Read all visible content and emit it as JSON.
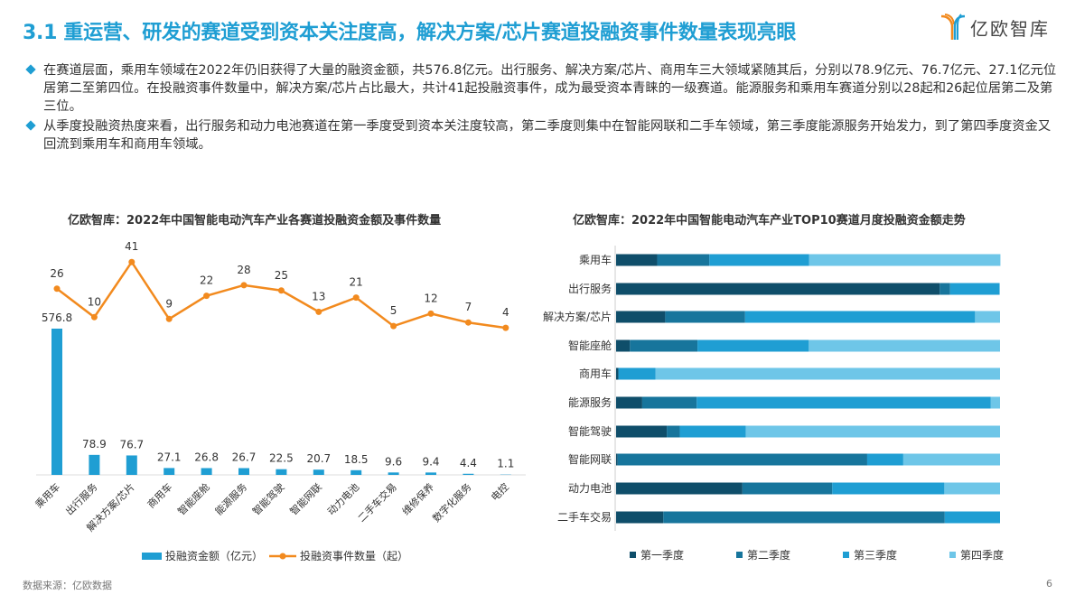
{
  "header": {
    "title": "3.1 重运营、研发的赛道受到资本关注度高，解决方案/芯片赛道投融资事件数量表现亮眼",
    "logo_text": "亿欧智库"
  },
  "bullets": [
    "在赛道层面，乘用车领域在2022年仍旧获得了大量的融资金额，共576.8亿元。出行服务、解决方案/芯片、商用车三大领域紧随其后，分别以78.9亿元、76.7亿元、27.1亿元位居第二至第四位。在投融资事件数量中，解决方案/芯片占比最大，共计41起投融资事件，成为最受资本青睐的一级赛道。能源服务和乘用车赛道分别以28起和26起位居第二及第三位。",
    "从季度投融资热度来看，出行服务和动力电池赛道在第一季度受到资本关注度较高，第二季度则集中在智能网联和二手车领域，第三季度能源服务开始发力，到了第四季度资金又回流到乘用车和商用车领域。"
  ],
  "chart_data": [
    {
      "type": "bar+line",
      "title": "亿欧智库：2022年中国智能电动汽车产业各赛道投融资金额及事件数量",
      "categories": [
        "乘用车",
        "出行服务",
        "解决方案/芯片",
        "商用车",
        "智能座舱",
        "能源服务",
        "智能驾驶",
        "智能网联",
        "动力电池",
        "二手车交易",
        "维修保养",
        "数字化服务",
        "电控"
      ],
      "series": [
        {
          "name": "投融资金额（亿元）",
          "type": "bar",
          "color": "#1f9ed3",
          "values": [
            576.8,
            78.9,
            76.7,
            27.1,
            26.8,
            26.7,
            22.5,
            20.7,
            18.5,
            9.6,
            9.4,
            4.4,
            1.1
          ]
        },
        {
          "name": "投融资事件数量（起）",
          "type": "line",
          "color": "#f28a1e",
          "values": [
            26,
            10,
            41,
            9,
            22,
            28,
            25,
            13,
            21,
            5,
            12,
            7,
            4
          ]
        }
      ],
      "legend": "bottom"
    },
    {
      "type": "stacked-bar-100-horizontal",
      "title": "亿欧智库：2022年中国智能电动汽车产业TOP10赛道月度投融资金额走势",
      "categories": [
        "乘用车",
        "出行服务",
        "解决方案/芯片",
        "智能座舱",
        "商用车",
        "能源服务",
        "智能驾驶",
        "智能网联",
        "动力电池",
        "二手车交易"
      ],
      "series": [
        {
          "name": "第一季度",
          "color": "#0f4e6a",
          "values": [
            10.7,
            84.3,
            12.8,
            3.6,
            0.6,
            6.8,
            13.2,
            0.4,
            32.9,
            12.3
          ]
        },
        {
          "name": "第二季度",
          "color": "#17759c",
          "values": [
            13.6,
            2.7,
            20.8,
            17.6,
            0,
            14.2,
            3.4,
            65.0,
            23.4,
            73.3
          ]
        },
        {
          "name": "第三季度",
          "color": "#1f9ed3",
          "values": [
            26.0,
            12.9,
            59.9,
            29.0,
            9.7,
            76.6,
            17.2,
            9.4,
            29.2,
            14.4
          ]
        },
        {
          "name": "第四季度",
          "color": "#6ec6e8",
          "values": [
            49.8,
            0,
            6.5,
            49.8,
            89.7,
            2.4,
            66.2,
            25.2,
            14.5,
            0
          ]
        }
      ],
      "legend": "bottom"
    }
  ],
  "footer": {
    "source": "数据来源：亿欧数据",
    "page": "6"
  }
}
